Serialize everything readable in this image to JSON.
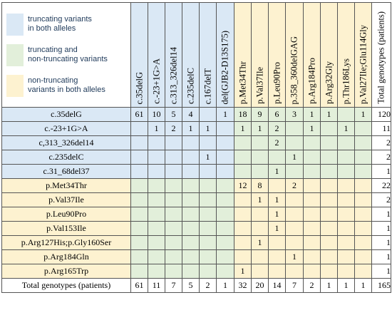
{
  "legend": [
    {
      "label": "truncating variants\nin both  alleles",
      "color": "#dae8f5"
    },
    {
      "label": "truncating and\nnon-truncating variants",
      "color": "#e2efda"
    },
    {
      "label": "non-truncating\nvariants in both alleles",
      "color": "#fdf2d0"
    }
  ],
  "columns": [
    "c.35delG",
    "c.-23+1G>A",
    "c.313_326del14",
    "c.235delC",
    "c.167delT",
    "del(GJB2-D13S175)",
    "p.Met34Thr",
    "p.Val37Ile",
    "p.Leu90Pro",
    "p.358_360delGAG",
    "p.Arg184Pro",
    "p.Arg32Gly",
    "p.Thr186Lys",
    "p.Val27Ile;Glu114Gly",
    "Total genotypes (patients)"
  ],
  "rows": [
    {
      "label": "c.35delG",
      "cells": [
        "61",
        "10",
        "5",
        "4",
        "",
        "1",
        "18",
        "9",
        "6",
        "3",
        "1",
        "1",
        "",
        "1",
        "120"
      ]
    },
    {
      "label": "c.-23+1G>A",
      "cells": [
        "",
        "1",
        "2",
        "1",
        "1",
        "",
        "1",
        "1",
        "2",
        "",
        "1",
        "",
        "1",
        "",
        "11"
      ]
    },
    {
      "label": "c,313_326del14",
      "cells": [
        "",
        "",
        "",
        "",
        "",
        "",
        "",
        "",
        "2",
        "",
        "",
        "",
        "",
        "",
        "2"
      ]
    },
    {
      "label": "c.235delC",
      "cells": [
        "",
        "",
        "",
        "",
        "1",
        "",
        "",
        "",
        "",
        "1",
        "",
        "",
        "",
        "",
        "2"
      ]
    },
    {
      "label": "c.31_68del37",
      "cells": [
        "",
        "",
        "",
        "",
        "",
        "",
        "",
        "",
        "1",
        "",
        "",
        "",
        "",
        "",
        "1"
      ]
    },
    {
      "label": "p.Met34Thr",
      "cells": [
        "",
        "",
        "",
        "",
        "",
        "",
        "12",
        "8",
        "",
        "2",
        "",
        "",
        "",
        "",
        "22"
      ]
    },
    {
      "label": "p.Val37Ile",
      "cells": [
        "",
        "",
        "",
        "",
        "",
        "",
        "",
        "1",
        "1",
        "",
        "",
        "",
        "",
        "",
        "2"
      ]
    },
    {
      "label": "p.Leu90Pro",
      "cells": [
        "",
        "",
        "",
        "",
        "",
        "",
        "",
        "",
        "1",
        "",
        "",
        "",
        "",
        "",
        "1"
      ]
    },
    {
      "label": "p.Val153Ile",
      "cells": [
        "",
        "",
        "",
        "",
        "",
        "",
        "",
        "",
        "1",
        "",
        "",
        "",
        "",
        "",
        "1"
      ]
    },
    {
      "label": "p.Arg127His;p.Gly160Ser",
      "cells": [
        "",
        "",
        "",
        "",
        "",
        "",
        "",
        "1",
        "",
        "",
        "",
        "",
        "",
        "",
        "1"
      ]
    },
    {
      "label": "p.Arg184Gln",
      "cells": [
        "",
        "",
        "",
        "",
        "",
        "",
        "",
        "",
        "",
        "1",
        "",
        "",
        "",
        "",
        "1"
      ]
    },
    {
      "label": "p.Arg165Trp",
      "cells": [
        "",
        "",
        "",
        "",
        "",
        "",
        "1",
        "",
        "",
        "",
        "",
        "",
        "",
        "",
        "1"
      ]
    }
  ],
  "totals": {
    "label": "Total genotypes (patients)",
    "cells": [
      "61",
      "11",
      "7",
      "5",
      "2",
      "1",
      "32",
      "20",
      "14",
      "7",
      "2",
      "1",
      "1",
      "1",
      "165"
    ]
  }
}
